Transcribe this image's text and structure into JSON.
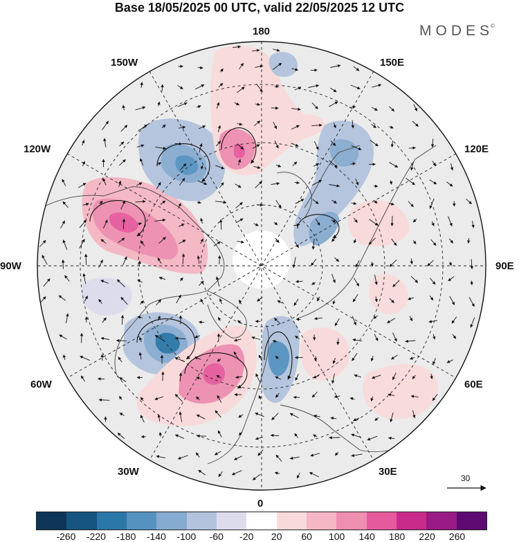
{
  "header": {
    "title": "Base 18/05/2025 00 UTC, valid 22/05/2025 12 UTC",
    "brand": "MODES",
    "brand_mark": "©"
  },
  "map": {
    "projection": "north-polar-stereographic",
    "longitude_labels": {
      "top": "180",
      "top_right": "150E",
      "upper_right": "120E",
      "right": "90E",
      "lower_right": "60E",
      "bottom_right": "30E",
      "bottom": "0",
      "bottom_left": "30W",
      "lower_left": "60W",
      "left": "90W",
      "upper_left": "120W",
      "top_left": "150W"
    },
    "anomaly_centers": [
      {
        "sign": "positive",
        "region": "northeast-pacific-alaska"
      },
      {
        "sign": "positive",
        "region": "central-north-atlantic"
      },
      {
        "sign": "negative",
        "region": "western-atlantic-newfoundland"
      },
      {
        "sign": "negative",
        "region": "western-europe"
      },
      {
        "sign": "negative",
        "region": "bering-sea"
      },
      {
        "sign": "negative",
        "region": "east-siberia"
      },
      {
        "sign": "positive",
        "region": "arctic-ocean-chukchi"
      }
    ],
    "wind_reference": {
      "value": "30",
      "icon": "arrow-right-icon"
    }
  },
  "colorbar": {
    "colors": [
      "#0d3558",
      "#15557f",
      "#2b77a7",
      "#5592c0",
      "#86abd0",
      "#b3c3de",
      "#dcdced",
      "#ffffff",
      "#f9dada",
      "#f5b7c4",
      "#ee8eb0",
      "#e55a9c",
      "#c92b8b",
      "#9a1a86",
      "#5e0a73"
    ],
    "ticks": [
      "-260",
      "-220",
      "-180",
      "-140",
      "-100",
      "-60",
      "-20",
      "20",
      "60",
      "100",
      "140",
      "180",
      "220",
      "260"
    ]
  }
}
